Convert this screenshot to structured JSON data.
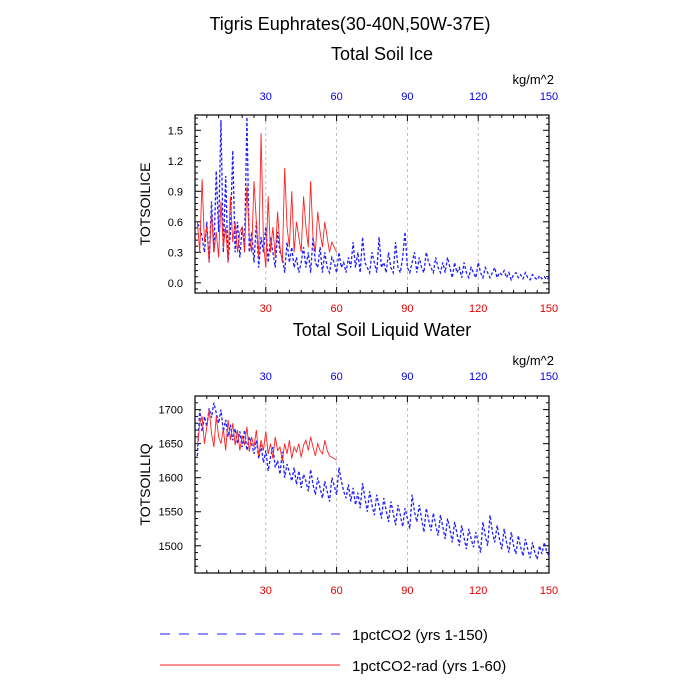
{
  "title": "Tigris Euphrates(30-40N,50W-37E)",
  "units": "kg/m^2",
  "colors": {
    "series_blue": "#1f1fff",
    "series_red": "#ff2222",
    "grid": "#b0b0b0",
    "axis_red": "#e00000",
    "axis_blue": "#0000e0"
  },
  "legend": [
    {
      "label": "1pctCO2 (yrs 1-150)",
      "style": "dashed",
      "color": "#1f1fff"
    },
    {
      "label": "1pctCO2-rad (yrs 1-60)",
      "style": "solid",
      "color": "#ff2222"
    }
  ],
  "chart_data": [
    {
      "type": "line",
      "title": "Total Soil Ice",
      "ylabel": "TOTSOILICE",
      "xlim": [
        0,
        150
      ],
      "ylim": [
        -0.1,
        1.65
      ],
      "xticks": [
        30,
        60,
        90,
        120,
        150
      ],
      "yticks": [
        0.0,
        0.3,
        0.6,
        0.9,
        1.2,
        1.5
      ],
      "ytick_labels": [
        "0.0",
        "0.3",
        "0.6",
        "0.9",
        "1.2",
        "1.5"
      ],
      "grid": "vertical-dashed",
      "series": [
        {
          "name": "1pctCO2 (yrs 1-150)",
          "x_start": 1,
          "values": [
            0.58,
            0.55,
            0.45,
            0.3,
            0.6,
            0.2,
            0.8,
            0.3,
            1.1,
            0.5,
            1.6,
            0.3,
            1.05,
            0.2,
            0.5,
            1.3,
            0.3,
            0.6,
            0.25,
            0.55,
            0.35,
            1.63,
            0.3,
            0.5,
            0.2,
            0.6,
            0.15,
            0.45,
            0.3,
            0.55,
            0.2,
            0.45,
            0.3,
            0.15,
            0.5,
            0.3,
            0.25,
            0.1,
            0.4,
            0.2,
            0.35,
            0.15,
            0.25,
            0.1,
            0.2,
            0.35,
            0.15,
            0.3,
            0.1,
            0.45,
            0.2,
            0.15,
            0.35,
            0.1,
            0.3,
            0.15,
            0.1,
            0.25,
            0.2,
            0.1,
            0.3,
            0.15,
            0.2,
            0.1,
            0.25,
            0.15,
            0.4,
            0.15,
            0.3,
            0.1,
            0.45,
            0.2,
            0.15,
            0.1,
            0.3,
            0.2,
            0.1,
            0.45,
            0.15,
            0.2,
            0.1,
            0.3,
            0.15,
            0.1,
            0.4,
            0.15,
            0.1,
            0.25,
            0.5,
            0.15,
            0.1,
            0.2,
            0.3,
            0.1,
            0.25,
            0.15,
            0.1,
            0.3,
            0.2,
            0.15,
            0.1,
            0.25,
            0.15,
            0.1,
            0.2,
            0.1,
            0.25,
            0.15,
            0.05,
            0.2,
            0.1,
            0.15,
            0.05,
            0.2,
            0.1,
            0.05,
            0.15,
            0.1,
            0.05,
            0.2,
            0.1,
            0.05,
            0.15,
            0.1,
            0.05,
            0.1,
            0.15,
            0.05,
            0.1,
            0.08,
            0.12,
            0.05,
            0.1,
            0.03,
            0.08,
            0.1,
            0.05,
            0.08,
            0.04,
            0.1,
            0.05,
            0.03,
            0.08,
            0.05,
            0.03,
            0.07,
            0.04,
            0.06,
            0.03,
            0.05
          ]
        },
        {
          "name": "1pctCO2-rad (yrs 1-60)",
          "x_start": 1,
          "values": [
            0.6,
            0.3,
            1.02,
            0.4,
            0.55,
            0.2,
            0.7,
            0.3,
            0.5,
            0.25,
            0.8,
            0.35,
            0.55,
            0.2,
            0.85,
            0.4,
            0.6,
            0.3,
            0.5,
            0.55,
            0.3,
            0.95,
            0.45,
            0.3,
            1.0,
            0.6,
            0.25,
            1.47,
            0.4,
            0.15,
            0.85,
            0.3,
            0.55,
            0.25,
            0.7,
            0.35,
            0.2,
            1.13,
            0.55,
            0.35,
            0.9,
            0.3,
            0.6,
            0.45,
            0.3,
            0.85,
            0.55,
            0.35,
            1.0,
            0.45,
            0.3,
            0.7,
            0.5,
            0.35,
            0.6,
            0.45,
            0.3,
            0.4,
            0.35,
            0.3
          ]
        }
      ]
    },
    {
      "type": "line",
      "title": "Total Soil Liquid Water",
      "ylabel": "TOTSOILLIQ",
      "xlim": [
        0,
        150
      ],
      "ylim": [
        1460,
        1720
      ],
      "xticks": [
        30,
        60,
        90,
        120,
        150
      ],
      "yticks": [
        1500,
        1550,
        1600,
        1650,
        1700
      ],
      "ytick_labels": [
        "1500",
        "1550",
        "1600",
        "1650",
        "1700"
      ],
      "grid": "vertical-dashed",
      "series": [
        {
          "name": "1pctCO2 (yrs 1-150)",
          "x_start": 1,
          "values": [
            1632,
            1700,
            1668,
            1690,
            1675,
            1702,
            1688,
            1710,
            1695,
            1680,
            1700,
            1668,
            1685,
            1660,
            1678,
            1655,
            1672,
            1650,
            1668,
            1645,
            1670,
            1640,
            1660,
            1650,
            1635,
            1655,
            1628,
            1648,
            1622,
            1640,
            1610,
            1630,
            1645,
            1615,
            1625,
            1605,
            1638,
            1600,
            1620,
            1608,
            1595,
            1615,
            1590,
            1610,
            1585,
            1605,
            1595,
            1580,
            1612,
            1590,
            1575,
            1600,
            1585,
            1570,
            1595,
            1580,
            1565,
            1600,
            1588,
            1575,
            1615,
            1595,
            1580,
            1570,
            1590,
            1565,
            1585,
            1560,
            1578,
            1555,
            1592,
            1570,
            1550,
            1580,
            1560,
            1545,
            1575,
            1558,
            1540,
            1570,
            1552,
            1535,
            1565,
            1548,
            1530,
            1560,
            1545,
            1528,
            1555,
            1540,
            1525,
            1575,
            1550,
            1535,
            1560,
            1540,
            1520,
            1555,
            1538,
            1522,
            1548,
            1530,
            1515,
            1545,
            1528,
            1510,
            1540,
            1525,
            1505,
            1535,
            1518,
            1500,
            1530,
            1512,
            1495,
            1525,
            1510,
            1498,
            1520,
            1505,
            1490,
            1535,
            1515,
            1500,
            1545,
            1520,
            1505,
            1530,
            1510,
            1495,
            1525,
            1505,
            1490,
            1520,
            1500,
            1488,
            1515,
            1498,
            1485,
            1510,
            1495,
            1482,
            1505,
            1490,
            1480,
            1500,
            1488,
            1505,
            1492,
            1485
          ]
        },
        {
          "name": "1pctCO2-rad (yrs 1-60)",
          "x_start": 1,
          "values": [
            1645,
            1680,
            1690,
            1650,
            1675,
            1700,
            1665,
            1645,
            1690,
            1660,
            1650,
            1672,
            1640,
            1685,
            1655,
            1680,
            1648,
            1670,
            1640,
            1662,
            1648,
            1675,
            1638,
            1660,
            1645,
            1670,
            1632,
            1655,
            1640,
            1668,
            1635,
            1650,
            1628,
            1660,
            1640,
            1645,
            1625,
            1650,
            1635,
            1655,
            1628,
            1645,
            1638,
            1650,
            1630,
            1648,
            1655,
            1640,
            1660,
            1645,
            1632,
            1650,
            1640,
            1635,
            1655,
            1640,
            1632,
            1630,
            1628,
            1626
          ]
        }
      ]
    }
  ]
}
